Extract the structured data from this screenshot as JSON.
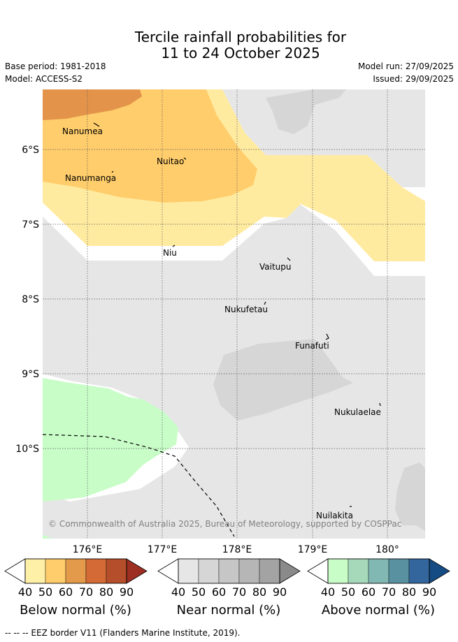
{
  "title": {
    "line1": "Tercile rainfall probabilities for",
    "line2": "11 to 24 October 2025"
  },
  "meta": {
    "base_period": "Base period: 1981-2018",
    "model": "Model: ACCESS-S2",
    "model_run": "Model run: 27/09/2025",
    "issued": "Issued: 29/09/2025"
  },
  "map": {
    "lat_labels": [
      "6°S",
      "7°S",
      "8°S",
      "9°S",
      "10°S"
    ],
    "lon_labels": [
      "176°E",
      "177°E",
      "178°E",
      "179°E",
      "180°"
    ],
    "islands": [
      "Nanumea",
      "Nuitao",
      "Nanumanga",
      "Niu",
      "Vaitupu",
      "Nukufetau",
      "Funafuti",
      "Nukulaelae",
      "Nuilakita"
    ],
    "copyright": "© Commonwealth of Australia 2025, Bureau of Meteorology, supported by COSPPac"
  },
  "colorbars": {
    "ticks": [
      "40",
      "50",
      "60",
      "70",
      "80",
      "90"
    ],
    "below": {
      "label": "Below normal (%)",
      "colors": [
        "#fff0a8",
        "#ffcd6b",
        "#e39a4a",
        "#d46a35",
        "#b54e2a",
        "#9c2e22"
      ]
    },
    "near": {
      "label": "Near normal (%)",
      "colors": [
        "#e6e6e6",
        "#d6d6d6",
        "#c6c6c6",
        "#b6b6b6",
        "#a3a3a3",
        "#8a8a8a"
      ]
    },
    "above": {
      "label": "Above normal (%)",
      "colors": [
        "#c8fdc8",
        "#a6d9b9",
        "#82b8b4",
        "#5991a0",
        "#33669c",
        "#154c84"
      ]
    }
  },
  "footer": "-- -- -- EEZ border V11 (Flanders Marine Institute, 2019)."
}
